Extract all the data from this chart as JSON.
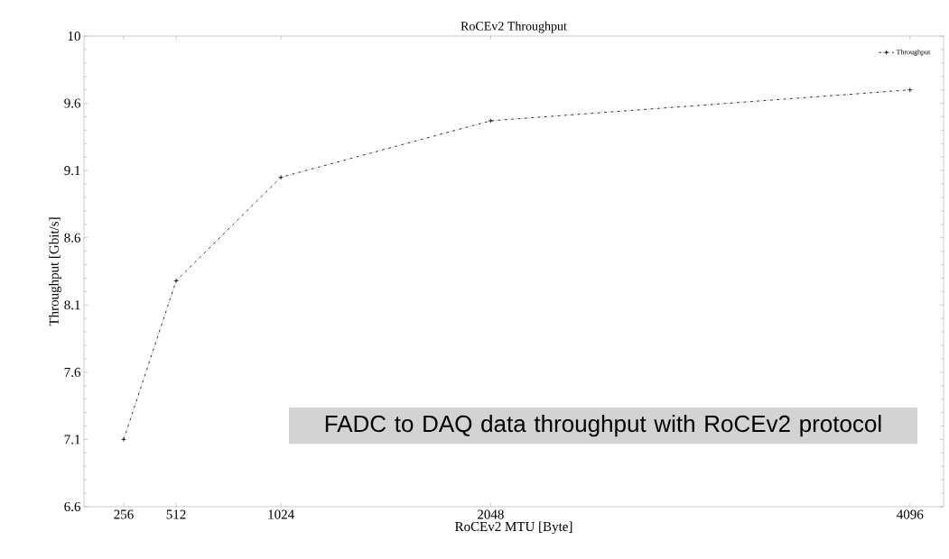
{
  "chart_data": {
    "type": "line",
    "title": "RoCEv2 Throughput",
    "xlabel": "RoCEv2 MTU [Byte]",
    "ylabel": "Throughput [Gbit/s]",
    "x": [
      256,
      512,
      1024,
      2048,
      4096
    ],
    "series": [
      {
        "name": "Throughput",
        "color": "#000000",
        "values": [
          7.1,
          8.28,
          9.05,
          9.47,
          9.7
        ]
      }
    ],
    "xlim": [
      62,
      4260
    ],
    "xticks": [
      256,
      512,
      1024,
      2048,
      4096
    ],
    "ylim": [
      6.6,
      10.1
    ],
    "yticks": [
      6.6,
      7.1,
      7.6,
      8.1,
      8.6,
      9.1,
      9.6,
      {
        "value": 10.1,
        "label": "10"
      }
    ],
    "legend": "top right",
    "marker": "cross",
    "line_style": "dashed",
    "grid": false,
    "annotations": [
      "FADC to DAQ data throughput with RoCEv2 protocol"
    ]
  }
}
